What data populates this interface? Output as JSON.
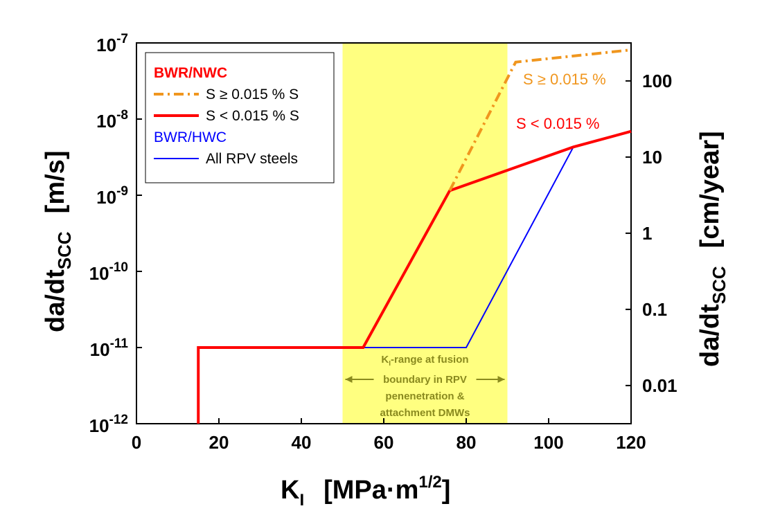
{
  "chart_data": {
    "type": "line",
    "x_label": {
      "main": "K",
      "sub": "I",
      "unit": "[MPa·m",
      "sup": "1/2",
      "end": "]"
    },
    "y_label": {
      "main": "da/dt",
      "sub": "SCC",
      "unit": "[m/s]"
    },
    "y2_label": {
      "main": "da/dt",
      "sub": "SCC",
      "unit": "[cm/year]"
    },
    "xlim": [
      0,
      120
    ],
    "xticks": [
      0,
      20,
      40,
      60,
      80,
      100,
      120
    ],
    "ylim": [
      1e-12,
      1e-07
    ],
    "yscale": "log",
    "yticks": [
      {
        "value": 1e-12,
        "label": "10",
        "exp": "-12"
      },
      {
        "value": 1e-11,
        "label": "10",
        "exp": "-11"
      },
      {
        "value": 1e-10,
        "label": "10",
        "exp": "-10"
      },
      {
        "value": 1e-09,
        "label": "10",
        "exp": "-9"
      },
      {
        "value": 1e-08,
        "label": "10",
        "exp": "-8"
      },
      {
        "value": 1e-07,
        "label": "10",
        "exp": "-7"
      }
    ],
    "y2lim": [
      0.003154,
      315.4
    ],
    "y2scale": "log",
    "y2ticks": [
      0.01,
      0.1,
      1,
      10,
      100
    ],
    "shaded_region": {
      "x": [
        50,
        90
      ],
      "color": "#ffff80",
      "label": {
        "k": "K",
        "sub": "I",
        "lines": [
          "-range at fusion",
          "boundary in RPV",
          "penenetration &",
          "attachment DMWs"
        ]
      }
    },
    "legend_groups": [
      {
        "title": "BWR/NWC",
        "color": "#ff0000"
      },
      {
        "title": "BWR/HWC",
        "color": "#0000ff"
      }
    ],
    "series": [
      {
        "name": "S ≥ 0.015 % S",
        "group": 0,
        "color": "#f0961e",
        "dash": "dashdot",
        "x": [
          76,
          92,
          120
        ],
        "values": [
          1.15e-09,
          5.6e-08,
          8.1e-08
        ]
      },
      {
        "name": "S < 0.015 % S",
        "group": 0,
        "color": "#ff0000",
        "dash": "solid",
        "x": [
          15,
          15,
          55,
          76,
          106,
          120
        ],
        "values": [
          1e-12,
          1e-11,
          1e-11,
          1.15e-09,
          4.3e-09,
          6.9e-09
        ]
      },
      {
        "name": "All RPV steels",
        "group": 1,
        "color": "#0000ff",
        "dash": "solid",
        "x": [
          55,
          80,
          106,
          120
        ],
        "values": [
          1e-11,
          1e-11,
          4.3e-09,
          6.9e-09
        ]
      }
    ],
    "annotations": [
      {
        "text": "S ≥ 0.015 %",
        "color": "#f0961e"
      },
      {
        "text": "S < 0.015 %",
        "color": "#ff0000"
      }
    ]
  }
}
